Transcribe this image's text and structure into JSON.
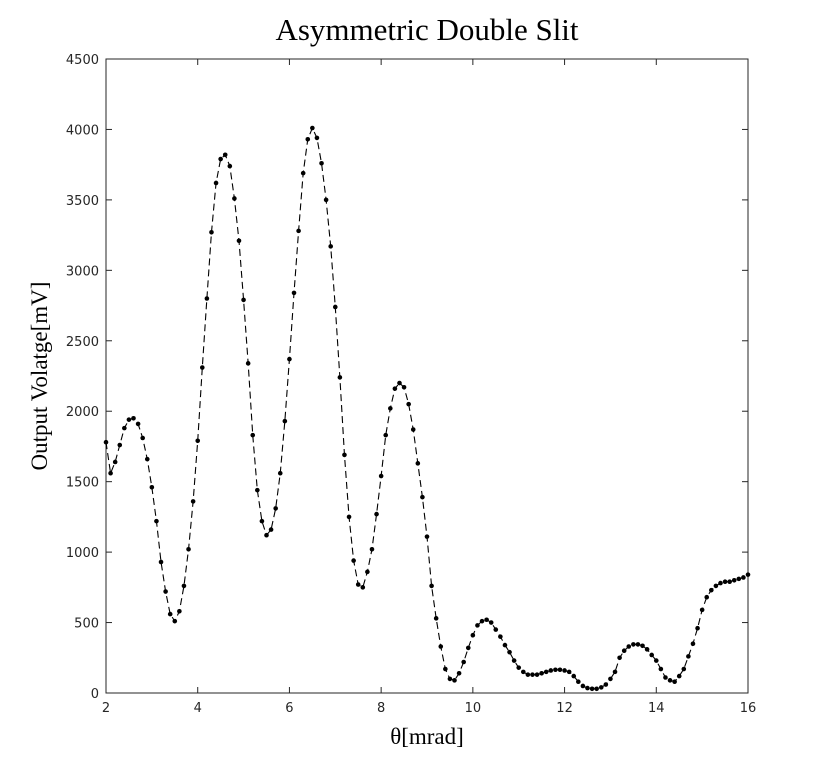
{
  "chart_data": {
    "type": "line",
    "title": "Asymmetric Double Slit",
    "xlabel": "θ[mrad]",
    "ylabel": "Output Volatge[mV]",
    "x": [
      2,
      2.1,
      2.2,
      2.3,
      2.4,
      2.5,
      2.6,
      2.7,
      2.8,
      2.9,
      3,
      3.1,
      3.2,
      3.3,
      3.4,
      3.5,
      3.6,
      3.7,
      3.8,
      3.9,
      4,
      4.1,
      4.2,
      4.3,
      4.4,
      4.5,
      4.6,
      4.7,
      4.8,
      4.9,
      5,
      5.1,
      5.2,
      5.3,
      5.4,
      5.5,
      5.6,
      5.7,
      5.8,
      5.9,
      6,
      6.1,
      6.2,
      6.3,
      6.4,
      6.5,
      6.6,
      6.7,
      6.8,
      6.9,
      7,
      7.1,
      7.2,
      7.3,
      7.4,
      7.5,
      7.6,
      7.7,
      7.8,
      7.9,
      8,
      8.1,
      8.2,
      8.3,
      8.4,
      8.5,
      8.6,
      8.7,
      8.8,
      8.9,
      9,
      9.1,
      9.2,
      9.3,
      9.4,
      9.5,
      9.6,
      9.7,
      9.8,
      9.9,
      10,
      10.1,
      10.2,
      10.3,
      10.4,
      10.5,
      10.6,
      10.7,
      10.8,
      10.9,
      11,
      11.1,
      11.2,
      11.3,
      11.4,
      11.5,
      11.6,
      11.7,
      11.8,
      11.9,
      12,
      12.1,
      12.2,
      12.3,
      12.4,
      12.5,
      12.6,
      12.7,
      12.8,
      12.9,
      13,
      13.1,
      13.2,
      13.3,
      13.4,
      13.5,
      13.6,
      13.7,
      13.8,
      13.9,
      14,
      14.1,
      14.2,
      14.3,
      14.4,
      14.5,
      14.6,
      14.7,
      14.8,
      14.9,
      15,
      15.1,
      15.2,
      15.3,
      15.4,
      15.5,
      15.6,
      15.7,
      15.8,
      15.9,
      16
    ],
    "series": [
      {
        "color": "#000000",
        "values": [
          1780,
          1560,
          1640,
          1760,
          1880,
          1940,
          1950,
          1910,
          1810,
          1660,
          1460,
          1220,
          930,
          720,
          560,
          510,
          580,
          760,
          1020,
          1360,
          1790,
          2310,
          2800,
          3270,
          3620,
          3790,
          3820,
          3740,
          3510,
          3210,
          2790,
          2340,
          1830,
          1440,
          1220,
          1120,
          1160,
          1310,
          1560,
          1930,
          2370,
          2840,
          3280,
          3690,
          3930,
          4010,
          3940,
          3760,
          3500,
          3170,
          2740,
          2240,
          1690,
          1250,
          940,
          770,
          750,
          860,
          1020,
          1270,
          1540,
          1830,
          2020,
          2160,
          2200,
          2170,
          2050,
          1870,
          1630,
          1390,
          1110,
          760,
          530,
          330,
          170,
          100,
          90,
          140,
          220,
          320,
          410,
          480,
          510,
          520,
          500,
          450,
          400,
          340,
          290,
          230,
          180,
          150,
          130,
          130,
          130,
          140,
          150,
          160,
          165,
          165,
          160,
          150,
          120,
          80,
          50,
          35,
          30,
          30,
          40,
          60,
          100,
          150,
          250,
          300,
          330,
          345,
          345,
          335,
          310,
          270,
          230,
          170,
          110,
          90,
          80,
          120,
          170,
          260,
          350,
          460,
          590,
          680,
          730,
          760,
          780,
          790,
          790,
          800,
          810,
          820,
          840
        ]
      }
    ],
    "xlim": [
      2,
      16
    ],
    "xticks": [
      2,
      4,
      6,
      8,
      10,
      12,
      14,
      16
    ],
    "ylim": [
      0,
      4500
    ],
    "yticks": [
      0,
      500,
      1000,
      1500,
      2000,
      2500,
      3000,
      3500,
      4000,
      4500
    ],
    "grid": false
  }
}
